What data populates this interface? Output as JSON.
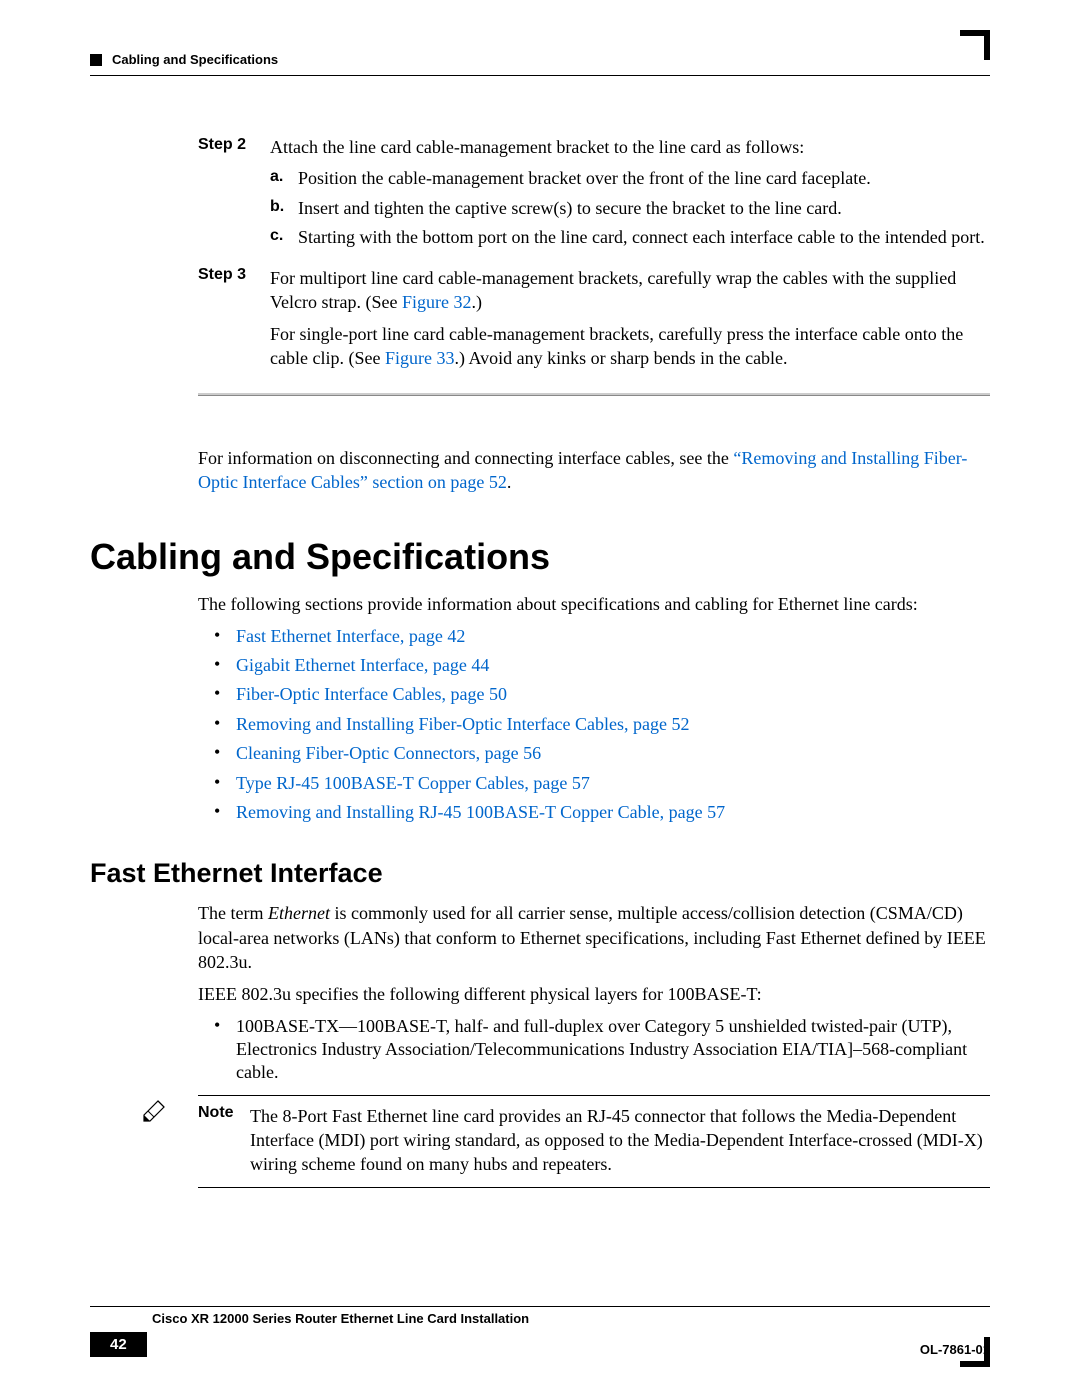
{
  "header": {
    "title": "Cabling and Specifications"
  },
  "steps": {
    "step2": {
      "label": "Step 2",
      "text": "Attach the line card cable-management bracket to the line card as follows:",
      "a": {
        "label": "a.",
        "text": "Position the cable-management bracket over the front of the line card faceplate."
      },
      "b": {
        "label": "b.",
        "text": "Insert and tighten the captive screw(s) to secure the bracket to the line card."
      },
      "c": {
        "label": "c.",
        "text": "Starting with the bottom port on the line card, connect each interface cable to the intended port."
      }
    },
    "step3": {
      "label": "Step 3",
      "text1_pre": "For multiport line card cable-management brackets, carefully wrap the cables with the supplied Velcro strap. (See ",
      "link1": "Figure 32",
      "text1_post": ".)",
      "text2_pre": "For single-port line card cable-management brackets, carefully press the interface cable onto the cable clip. (See ",
      "link2": "Figure 33",
      "text2_post": ".) Avoid any kinks or sharp bends in the cable."
    }
  },
  "after_steps": {
    "pre": "For information on disconnecting and connecting interface cables, see the ",
    "link": "“Removing and Installing Fiber-Optic Interface Cables” section on page 52",
    "post": "."
  },
  "section": {
    "title": "Cabling and Specifications",
    "intro": "The following sections provide information about specifications and cabling for Ethernet line cards:",
    "links": [
      "Fast Ethernet Interface, page 42",
      "Gigabit Ethernet Interface, page 44",
      "Fiber-Optic Interface Cables, page 50",
      "Removing and Installing Fiber-Optic Interface Cables, page 52",
      "Cleaning Fiber-Optic Connectors, page 56",
      "Type RJ-45 100BASE-T Copper Cables, page 57",
      "Removing and Installing RJ-45 100BASE-T Copper Cable, page 57"
    ]
  },
  "subsection": {
    "title": "Fast Ethernet Interface",
    "para1_pre": "The term ",
    "para1_em": "Ethernet",
    "para1_post": " is commonly used for all carrier sense, multiple access/collision detection (CSMA/CD) local-area networks (LANs) that conform to Ethernet specifications, including Fast Ethernet defined by IEEE 802.3u.",
    "para2": "IEEE 802.3u specifies the following different physical layers for 100BASE-T:",
    "bullet": "100BASE-TX—100BASE-T, half- and full-duplex over Category 5 unshielded twisted-pair (UTP), Electronics Industry Association/Telecommunications Industry Association EIA/TIA]–568-compliant cable."
  },
  "note": {
    "label": "Note",
    "text": "The 8-Port Fast Ethernet line card provides an RJ-45 connector that follows the Media-Dependent Interface (MDI) port wiring standard, as opposed to the Media-Dependent Interface-crossed (MDI-X) wiring scheme found on many hubs and repeaters."
  },
  "footer": {
    "doc_title": "Cisco XR 12000 Series Router Ethernet Line Card Installation",
    "page": "42",
    "doc_id": "OL-7861-01"
  },
  "colors": {
    "link": "#0066cc",
    "text": "#000000"
  }
}
